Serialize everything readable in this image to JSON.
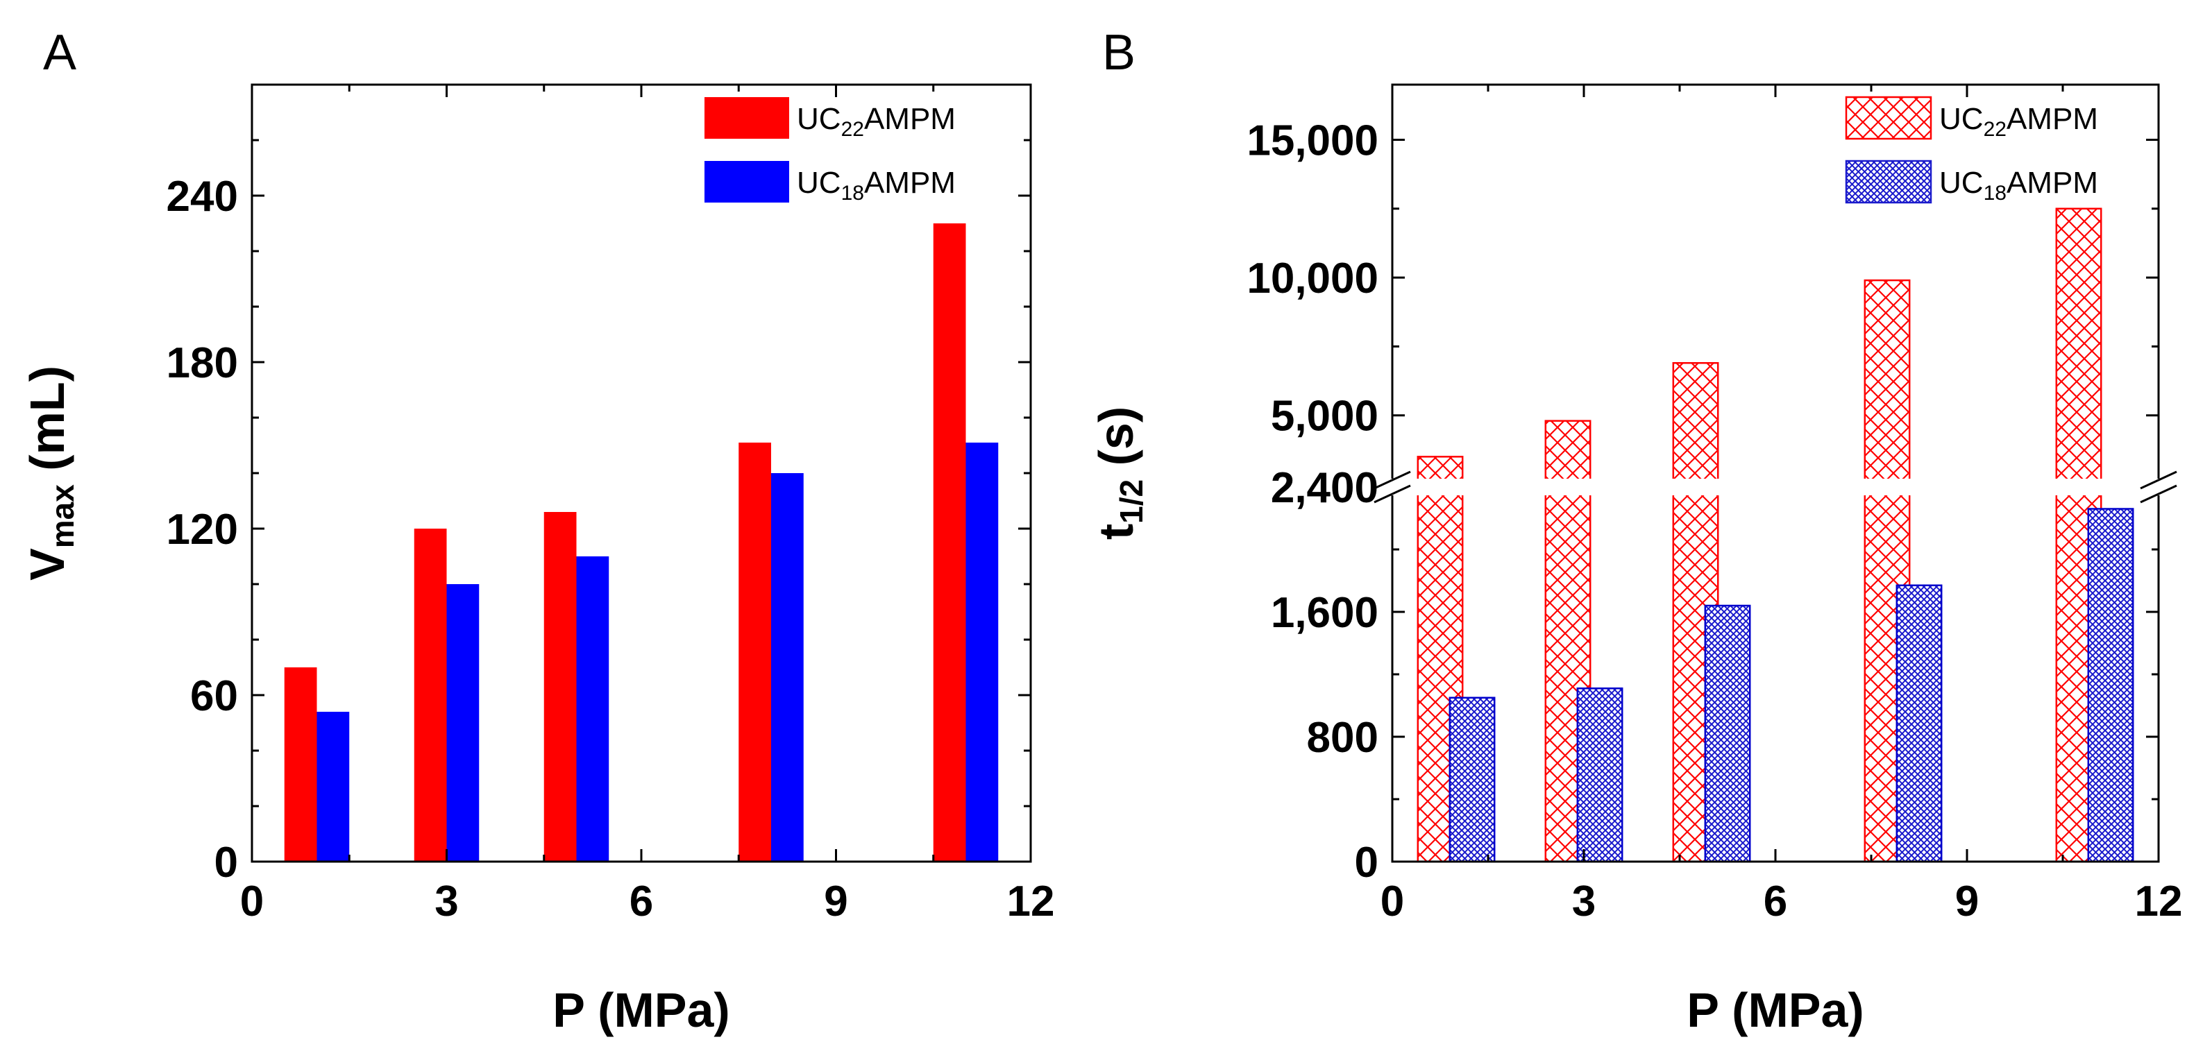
{
  "colors": {
    "uc22_a": "#ff0000",
    "uc18_a": "#0000ff",
    "uc22_b": "#ff0000",
    "uc18_b": "#0000cc"
  },
  "chart_data": [
    {
      "panel": "A",
      "type": "bar",
      "xlabel": "P (MPa)",
      "ylabel_main": "V",
      "ylabel_sub": "max",
      "ylabel_tail": " (mL)",
      "xlim": [
        0,
        12
      ],
      "xticks": [
        "0",
        "3",
        "6",
        "9",
        "12"
      ],
      "ylim": [
        0,
        280
      ],
      "yticks": [
        "0",
        "60",
        "120",
        "180",
        "240"
      ],
      "legend_position": "top-right",
      "series": [
        {
          "name_pre": "UC",
          "name_sub": "22",
          "name_post": "AMPM",
          "x": [
            0.75,
            2.75,
            4.75,
            7.75,
            10.75
          ],
          "values": [
            70,
            120,
            126,
            151,
            230
          ]
        },
        {
          "name_pre": "UC",
          "name_sub": "18",
          "name_post": "AMPM",
          "x": [
            1.25,
            3.25,
            5.25,
            8.25,
            11.25
          ],
          "values": [
            54,
            100,
            110,
            140,
            151
          ]
        }
      ]
    },
    {
      "panel": "B",
      "type": "bar",
      "xlabel": "P (MPa)",
      "ylabel_main": "t",
      "ylabel_sub": "1/2",
      "ylabel_tail": " (s)",
      "xlim": [
        0,
        12
      ],
      "xticks": [
        "0",
        "3",
        "6",
        "9",
        "12"
      ],
      "axis_break": {
        "lower": [
          0,
          2400
        ],
        "upper": [
          2400,
          17000
        ]
      },
      "yticks_lower": [
        "0",
        "800",
        "1,600",
        "2,400"
      ],
      "yticks_upper": [
        "5,000",
        "10,000",
        "15,000"
      ],
      "legend_position": "top-right",
      "series": [
        {
          "name_pre": "UC",
          "name_sub": "22",
          "name_post": "AMPM",
          "pattern": "crosshatch",
          "x": [
            0.75,
            2.75,
            4.75,
            7.75,
            10.75
          ],
          "values": [
            3500,
            4800,
            6900,
            9900,
            12500
          ]
        },
        {
          "name_pre": "UC",
          "name_sub": "18",
          "name_post": "AMPM",
          "pattern": "fine-crosshatch",
          "x": [
            1.25,
            3.25,
            5.25,
            8.25,
            11.25
          ],
          "values": [
            1050,
            1110,
            1640,
            1770,
            2260
          ]
        }
      ]
    }
  ]
}
